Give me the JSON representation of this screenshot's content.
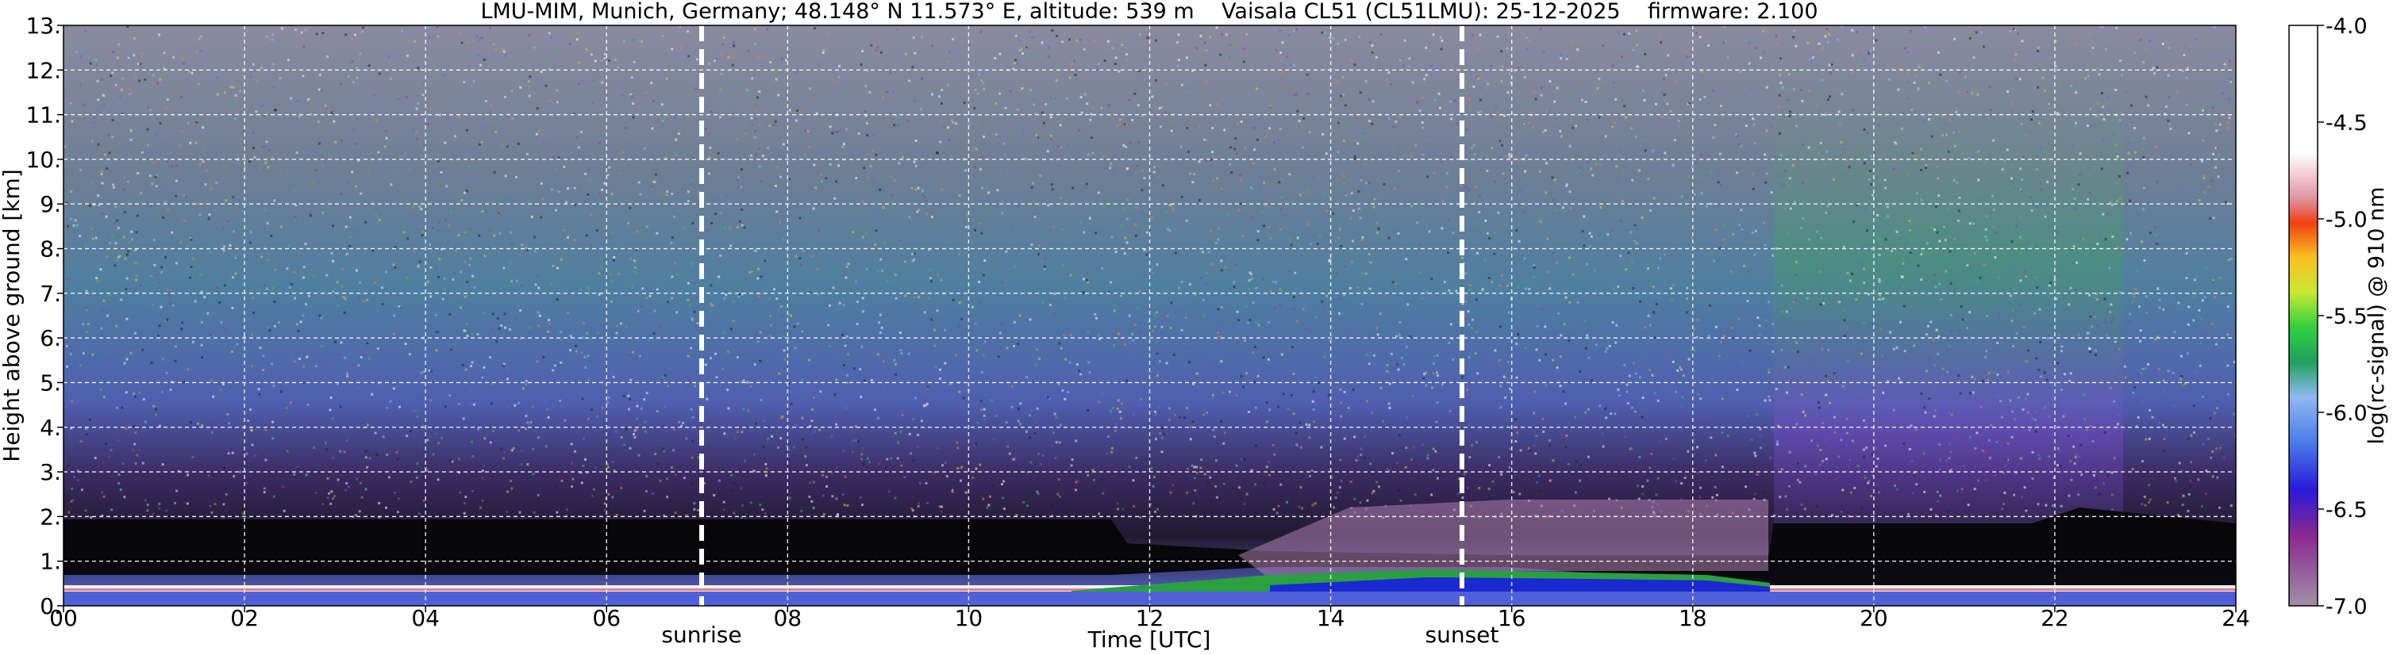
{
  "chart_data": {
    "type": "heatmap",
    "title": "LMU-MIM, Munich, Germany; 48.148° N 11.573° E, altitude: 539 m    Vaisala CL51 (CL51LMU): 25-12-2025    firmware: 2.100",
    "xlabel": "Time [UTC]",
    "ylabel": "Height above ground [km]",
    "xlim": [
      0,
      24
    ],
    "ylim": [
      0,
      13
    ],
    "x_ticks": [
      "00",
      "02",
      "04",
      "06",
      "08",
      "10",
      "12",
      "14",
      "16",
      "18",
      "20",
      "22",
      "24"
    ],
    "y_ticks": [
      "0.",
      "1.",
      "2.",
      "3.",
      "4.",
      "5.",
      "6.",
      "7.",
      "8.",
      "9.",
      "10.",
      "11.",
      "12.",
      "13."
    ],
    "grid": true,
    "colorbar": {
      "label": "log(rc-signal) @ 910 nm",
      "range": [
        -7.0,
        -4.0
      ],
      "ticks": [
        "-4.0",
        "-4.5",
        "-5.0",
        "-5.5",
        "-6.0",
        "-6.5",
        "-7.0"
      ]
    },
    "annotations": [
      {
        "text": "sunrise",
        "x": 7.05
      },
      {
        "text": "sunset",
        "x": 15.45
      }
    ]
  }
}
